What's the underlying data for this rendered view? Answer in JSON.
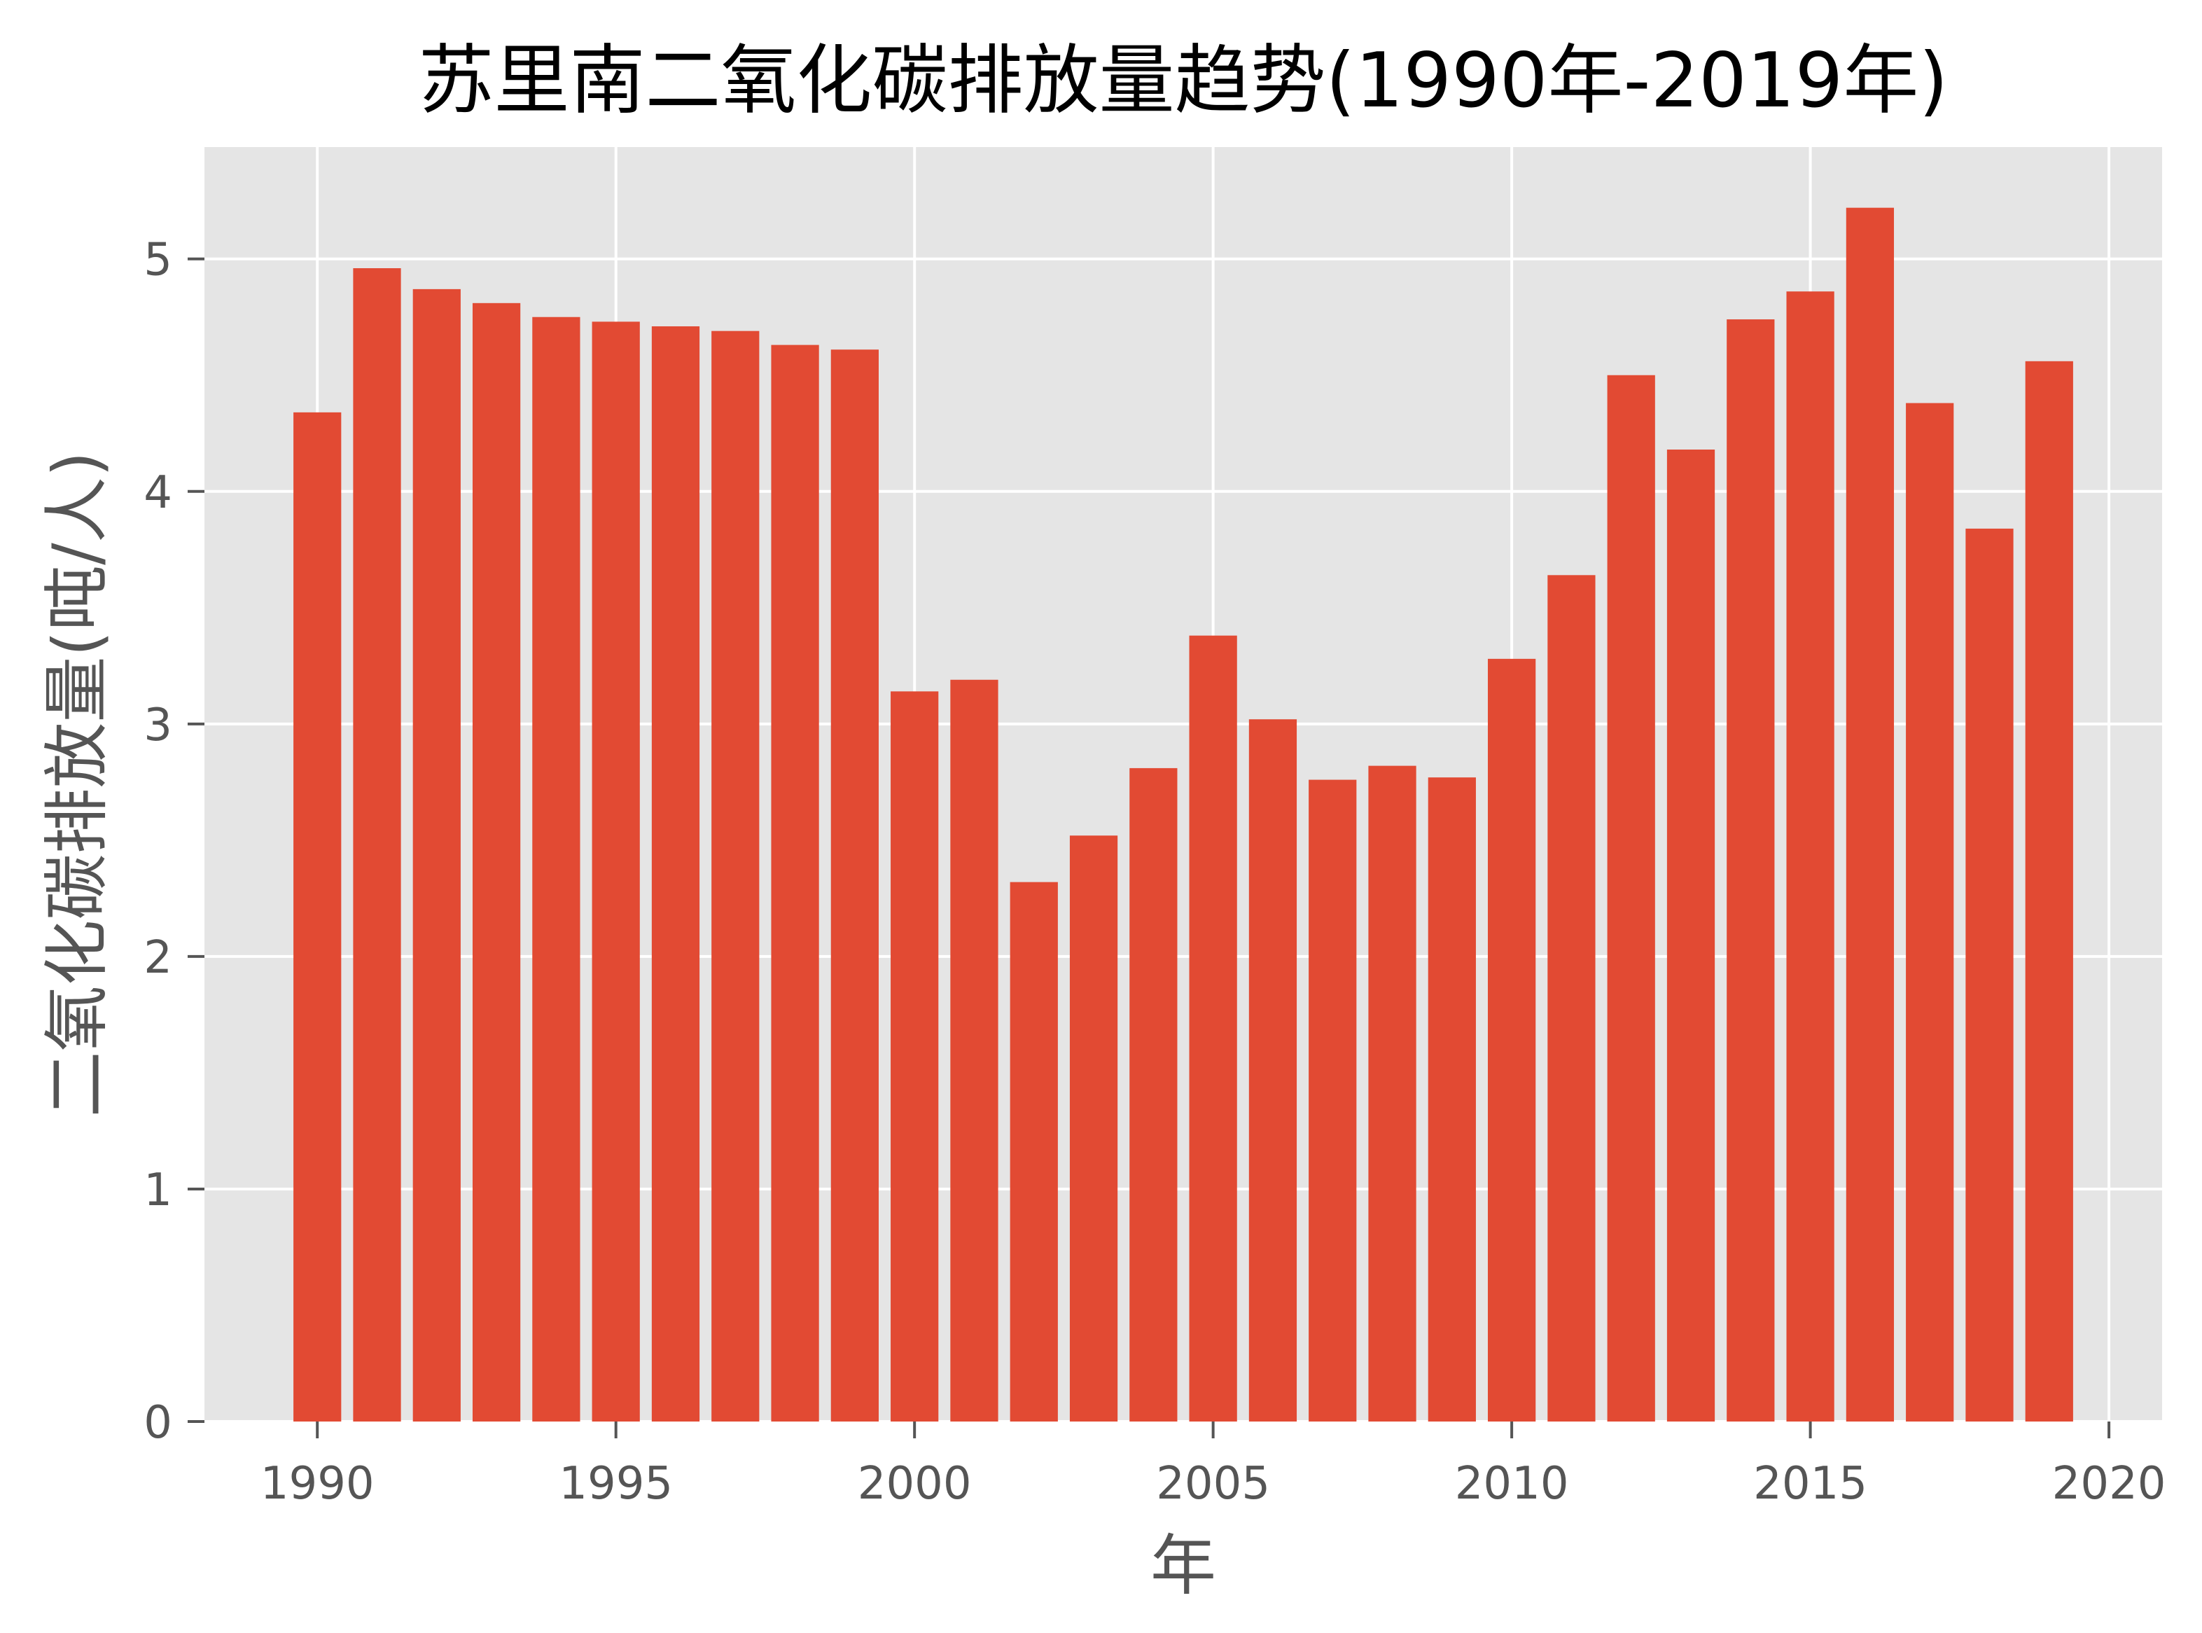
{
  "chart_data": {
    "type": "bar",
    "title": "苏里南二氧化碳排放量趋势(1990年-2019年)",
    "xlabel": "年",
    "ylabel": "二氧化碳排放量(吨/人)",
    "x": [
      1990,
      1991,
      1992,
      1993,
      1994,
      1995,
      1996,
      1997,
      1998,
      1999,
      2000,
      2001,
      2002,
      2003,
      2004,
      2005,
      2006,
      2007,
      2008,
      2009,
      2010,
      2011,
      2012,
      2013,
      2014,
      2015,
      2016,
      2017,
      2018,
      2019
    ],
    "values": [
      4.34,
      4.96,
      4.87,
      4.81,
      4.75,
      4.73,
      4.71,
      4.69,
      4.63,
      4.61,
      3.14,
      3.19,
      2.32,
      2.52,
      2.81,
      3.38,
      3.02,
      2.76,
      2.82,
      2.77,
      3.28,
      3.64,
      4.5,
      4.18,
      4.74,
      4.86,
      5.22,
      4.38,
      3.84,
      4.56
    ],
    "xlim": [
      1988.11,
      2020.89
    ],
    "ylim": [
      0,
      5.481
    ],
    "xticks": [
      1990,
      1995,
      2000,
      2005,
      2010,
      2015,
      2020
    ],
    "xtick_labels": [
      "1990",
      "1995",
      "2000",
      "2005",
      "2010",
      "2015",
      "2020"
    ],
    "yticks": [
      0,
      1,
      2,
      3,
      4,
      5
    ],
    "ytick_labels": [
      "0",
      "1",
      "2",
      "3",
      "4",
      "5"
    ],
    "grid": true,
    "legend": "none"
  },
  "colors": {
    "bar": "#E24A33",
    "plot_background": "#E5E5E5",
    "grid": "#FFFFFF",
    "tick": "#555555",
    "title": "#000000"
  }
}
